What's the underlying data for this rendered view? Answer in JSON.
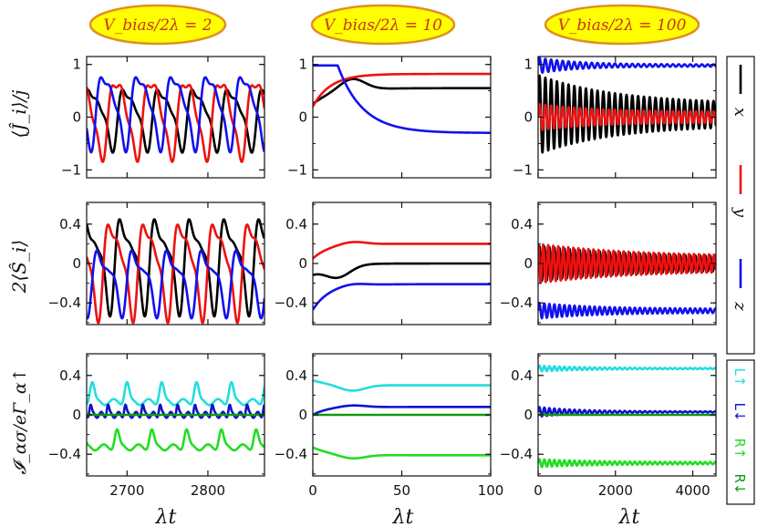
{
  "figure": {
    "column_titles": [
      "V_bias/2λ = 2",
      "V_bias/2λ = 10",
      "V_bias/2λ = 100"
    ],
    "row_labels": [
      "⟨Ĵ_i⟩/j",
      "2⟨Ŝ_i⟩",
      "𝓘_ασ/eΓ_α↑"
    ],
    "xlabel": "λt"
  },
  "legend_spin": [
    {
      "label": "x",
      "color": "#000000"
    },
    {
      "label": "y",
      "color": "#ee1111"
    },
    {
      "label": "z",
      "color": "#1111ee"
    }
  ],
  "legend_current": [
    {
      "label": "L↑",
      "color": "#22dddd"
    },
    {
      "label": "L↓",
      "color": "#1111cc"
    },
    {
      "label": "R↑",
      "color": "#22dd22"
    },
    {
      "label": "R↓",
      "color": "#119911"
    }
  ],
  "chart_data": [
    {
      "type": "line",
      "panel": "J_bias2",
      "ylabel": "⟨Ĵ_i⟩/j",
      "xlim": [
        2650,
        2870
      ],
      "ylim": [
        -1.15,
        1.15
      ],
      "xticks": [],
      "yticks": [
        -1,
        0,
        1
      ],
      "ytick_labels": [
        "−1",
        "0",
        "1"
      ],
      "series": [
        {
          "name": "x",
          "color": "#000000",
          "kind": "osc",
          "params": {
            "base": 0.05,
            "amp": 0.6,
            "period": 43,
            "phase": 0.4,
            "harm": 0.35
          }
        },
        {
          "name": "y",
          "color": "#ee1111",
          "kind": "osc",
          "params": {
            "base": 0.05,
            "amp": 0.85,
            "period": 43,
            "phase": 2.2,
            "harm": 0.2
          }
        },
        {
          "name": "z",
          "color": "#1111ee",
          "kind": "osc",
          "params": {
            "base": 0.2,
            "amp": 0.75,
            "period": 43,
            "phase": 4.3,
            "harm": 0.3
          }
        }
      ]
    },
    {
      "type": "line",
      "panel": "J_bias10",
      "xlim": [
        0,
        100
      ],
      "ylim": [
        -1.15,
        1.15
      ],
      "xticks": [],
      "yticks": [
        -1,
        0,
        1
      ],
      "ytick_labels": [
        "−1",
        "0",
        "1"
      ],
      "series": [
        {
          "name": "x",
          "color": "#000000",
          "kind": "relax",
          "params": {
            "start": 0.25,
            "end": 0.55,
            "tau": 12,
            "bump": 0.22,
            "bump_at": 22
          }
        },
        {
          "name": "y",
          "color": "#ee1111",
          "kind": "relax",
          "params": {
            "start": 0.2,
            "end": 0.82,
            "tau": 10,
            "bump": 0,
            "bump_at": 0
          }
        },
        {
          "name": "z",
          "color": "#1111ee",
          "kind": "relax",
          "params": {
            "start": 0.98,
            "end": -0.3,
            "tau": 14,
            "bump": 0,
            "bump_at": 0,
            "delay": 14
          }
        }
      ]
    },
    {
      "type": "line",
      "panel": "J_bias100",
      "xlim": [
        0,
        4600
      ],
      "ylim": [
        -1.15,
        1.15
      ],
      "xticks": [],
      "yticks": [
        -1,
        0,
        1
      ],
      "ytick_labels": [
        "−1",
        "0",
        "1"
      ],
      "series": [
        {
          "name": "x",
          "color": "#000000",
          "kind": "damped",
          "params": {
            "base": 0.05,
            "amp": 0.75,
            "end_amp": 0.2,
            "period": 150,
            "decay": 2000
          }
        },
        {
          "name": "y",
          "color": "#ee1111",
          "kind": "damped",
          "params": {
            "base": 0.0,
            "amp": 0.25,
            "end_amp": 0.1,
            "period": 150,
            "decay": 1500
          }
        },
        {
          "name": "z",
          "color": "#1111ee",
          "kind": "damped",
          "params": {
            "base": 0.98,
            "amp": 0.15,
            "end_amp": 0.02,
            "period": 150,
            "decay": 1000
          }
        }
      ]
    },
    {
      "type": "line",
      "panel": "S_bias2",
      "ylabel": "2⟨Ŝ_i⟩",
      "xlim": [
        2650,
        2870
      ],
      "ylim": [
        -0.62,
        0.62
      ],
      "xticks": [],
      "yticks": [
        -0.4,
        0,
        0.4
      ],
      "ytick_labels": [
        "−0.4",
        "0",
        "0.4"
      ],
      "series": [
        {
          "name": "x",
          "color": "#000000",
          "kind": "osc",
          "params": {
            "base": 0.05,
            "amp": 0.45,
            "period": 43,
            "phase": 0.9,
            "harm": 0.45
          }
        },
        {
          "name": "y",
          "color": "#ee1111",
          "kind": "osc",
          "params": {
            "base": 0.0,
            "amp": 0.5,
            "period": 43,
            "phase": 3.0,
            "harm": 0.35
          }
        },
        {
          "name": "z",
          "color": "#1111ee",
          "kind": "osc",
          "params": {
            "base": -0.15,
            "amp": 0.3,
            "period": 43,
            "phase": 5.0,
            "harm": 0.5
          }
        }
      ]
    },
    {
      "type": "line",
      "panel": "S_bias10",
      "xlim": [
        0,
        100
      ],
      "ylim": [
        -0.62,
        0.62
      ],
      "xticks": [],
      "yticks": [
        -0.4,
        0,
        0.4
      ],
      "ytick_labels": [
        "−0.4",
        "0",
        "0.4"
      ],
      "series": [
        {
          "name": "x",
          "color": "#000000",
          "kind": "relax",
          "params": {
            "start": -0.1,
            "end": 0.0,
            "tau": 10,
            "bump": -0.12,
            "bump_at": 14
          }
        },
        {
          "name": "y",
          "color": "#ee1111",
          "kind": "relax",
          "params": {
            "start": 0.05,
            "end": 0.2,
            "tau": 9,
            "bump": 0.03,
            "bump_at": 22
          }
        },
        {
          "name": "z",
          "color": "#1111ee",
          "kind": "relax",
          "params": {
            "start": -0.47,
            "end": -0.21,
            "tau": 9,
            "bump": 0.02,
            "bump_at": 22
          }
        }
      ]
    },
    {
      "type": "line",
      "panel": "S_bias100",
      "xlim": [
        0,
        4600
      ],
      "ylim": [
        -0.62,
        0.62
      ],
      "xticks": [],
      "yticks": [
        -0.4,
        0,
        0.4
      ],
      "ytick_labels": [
        "−0.4",
        "0",
        "0.4"
      ],
      "series": [
        {
          "name": "x",
          "color": "#000000",
          "kind": "damped",
          "params": {
            "base": 0.0,
            "amp": 0.18,
            "end_amp": 0.06,
            "period": 130,
            "decay": 2500
          }
        },
        {
          "name": "y",
          "color": "#ee1111",
          "kind": "damped",
          "params": {
            "base": 0.0,
            "amp": 0.2,
            "end_amp": 0.07,
            "period": 130,
            "decay": 2500,
            "phase": 1.5
          }
        },
        {
          "name": "z",
          "color": "#1111ee",
          "kind": "damped",
          "params": {
            "base": -0.48,
            "amp": 0.08,
            "end_amp": 0.02,
            "period": 130,
            "decay": 1500
          }
        }
      ]
    },
    {
      "type": "line",
      "panel": "I_bias2",
      "ylabel": "𝓘_ασ/eΓ_α↑",
      "xlim": [
        2650,
        2870
      ],
      "ylim": [
        -0.62,
        0.62
      ],
      "xticks": [
        2700,
        2800
      ],
      "xtick_labels": [
        "2700",
        "2800"
      ],
      "yticks": [
        -0.4,
        0,
        0.4
      ],
      "ytick_labels": [
        "−0.4",
        "0",
        "0.4"
      ],
      "xlabel": "λt",
      "series": [
        {
          "name": "L↑",
          "color": "#22dddd",
          "kind": "pulse",
          "params": {
            "base": 0.13,
            "amp": 0.2,
            "period": 43,
            "phase": 0.6
          }
        },
        {
          "name": "L↓",
          "color": "#1111cc",
          "kind": "pulse",
          "params": {
            "base": 0.0,
            "amp": 0.1,
            "period": 21.5,
            "phase": 0.2
          }
        },
        {
          "name": "R↑",
          "color": "#22dd22",
          "kind": "pulse",
          "params": {
            "base": -0.33,
            "amp": 0.18,
            "period": 43,
            "phase": 2.4
          }
        },
        {
          "name": "R↓",
          "color": "#119911",
          "kind": "flat",
          "params": {
            "value": 0.0
          }
        }
      ]
    },
    {
      "type": "line",
      "panel": "I_bias10",
      "xlim": [
        0,
        100
      ],
      "ylim": [
        -0.62,
        0.62
      ],
      "xticks": [
        0,
        50,
        100
      ],
      "xtick_labels": [
        "0",
        "50",
        "100"
      ],
      "yticks": [
        -0.4,
        0,
        0.4
      ],
      "ytick_labels": [
        "−0.4",
        "0",
        "0.4"
      ],
      "xlabel": "λt",
      "series": [
        {
          "name": "L↑",
          "color": "#22dddd",
          "kind": "relax",
          "params": {
            "start": 0.35,
            "end": 0.3,
            "tau": 10,
            "bump": -0.06,
            "bump_at": 22
          }
        },
        {
          "name": "L↓",
          "color": "#1111cc",
          "kind": "relax",
          "params": {
            "start": 0.0,
            "end": 0.08,
            "tau": 8,
            "bump": 0.02,
            "bump_at": 22
          }
        },
        {
          "name": "R↑",
          "color": "#22dd22",
          "kind": "relax",
          "params": {
            "start": -0.33,
            "end": -0.41,
            "tau": 10,
            "bump": -0.04,
            "bump_at": 22
          }
        },
        {
          "name": "R↓",
          "color": "#119911",
          "kind": "flat",
          "params": {
            "value": 0.0
          }
        }
      ]
    },
    {
      "type": "line",
      "panel": "I_bias100",
      "xlim": [
        0,
        4600
      ],
      "ylim": [
        -0.62,
        0.62
      ],
      "xticks": [
        0,
        2000,
        4000
      ],
      "xtick_labels": [
        "0",
        "2000",
        "4000"
      ],
      "yticks": [
        -0.4,
        0,
        0.4
      ],
      "ytick_labels": [
        "−0.4",
        "0",
        "0.4"
      ],
      "xlabel": "λt",
      "series": [
        {
          "name": "L↑",
          "color": "#22dddd",
          "kind": "damped",
          "params": {
            "base": 0.47,
            "amp": 0.03,
            "end_amp": 0.005,
            "period": 130,
            "decay": 1200
          }
        },
        {
          "name": "L↓",
          "color": "#1111cc",
          "kind": "damped",
          "params": {
            "base": 0.03,
            "amp": 0.05,
            "end_amp": 0.005,
            "period": 130,
            "decay": 1000
          }
        },
        {
          "name": "R↑",
          "color": "#22dd22",
          "kind": "damped",
          "params": {
            "base": -0.49,
            "amp": 0.04,
            "end_amp": 0.01,
            "period": 130,
            "decay": 1500
          }
        },
        {
          "name": "R↓",
          "color": "#119911",
          "kind": "flat",
          "params": {
            "value": 0.0
          }
        }
      ]
    }
  ]
}
